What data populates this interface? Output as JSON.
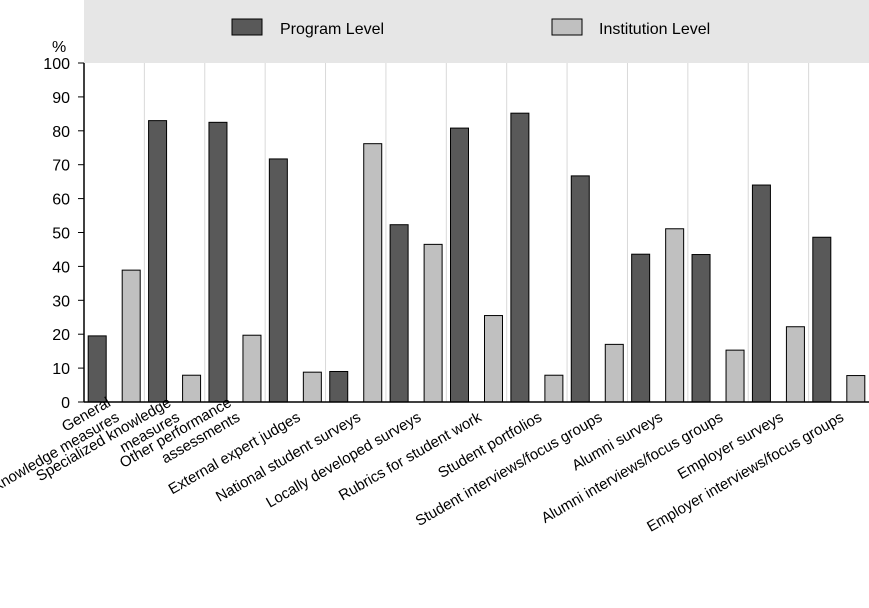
{
  "chart_data": {
    "type": "bar",
    "ylabel": "%",
    "ylim": [
      0,
      100
    ],
    "yticks": [
      0,
      10,
      20,
      30,
      40,
      50,
      60,
      70,
      80,
      90,
      100
    ],
    "grid": "vertical separators between categories",
    "legend_position": "top",
    "categories": [
      [
        "General",
        "knowledge measures"
      ],
      [
        "Specialized knowledge",
        "measures"
      ],
      [
        "Other performance",
        "assessments"
      ],
      [
        "External expert judges"
      ],
      [
        "National student surveys"
      ],
      [
        "Locally developed surveys"
      ],
      [
        "Rubrics for student work"
      ],
      [
        "Student portfolios"
      ],
      [
        "Student interviews/focus groups"
      ],
      [
        "Alumni surveys"
      ],
      [
        "Alumni interviews/focus groups"
      ],
      [
        "Employer surveys"
      ],
      [
        "Employer interviews/focus groups"
      ]
    ],
    "series": [
      {
        "name": "Program Level",
        "color": "#595959",
        "values": [
          19.5,
          83,
          82.5,
          71.7,
          9,
          52.3,
          80.8,
          85.2,
          66.7,
          43.6,
          43.5,
          64,
          48.6
        ]
      },
      {
        "name": "Institution Level",
        "color": "#c0c0c0",
        "values": [
          38.9,
          7.9,
          19.7,
          8.8,
          76.2,
          46.5,
          25.5,
          7.9,
          17,
          51.1,
          15.3,
          22.2,
          7.8
        ]
      }
    ],
    "colors": {
      "panel_background": "#e6e6e6",
      "plot_background": "#ffffff",
      "separator": "#d9d9d9",
      "bar_stroke": "#000000"
    }
  }
}
